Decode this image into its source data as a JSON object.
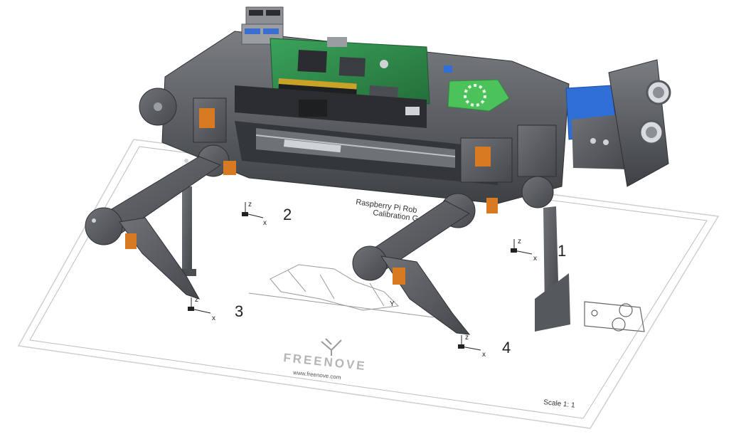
{
  "sheet": {
    "title_line1": "Raspberry Pi Rob",
    "title_line2": "Calibration G",
    "brand": "FREENOVE",
    "website": "www.freenove.com",
    "scale": "Scale 1: 1",
    "markers": [
      {
        "num": "1"
      },
      {
        "num": "2"
      },
      {
        "num": "3"
      },
      {
        "num": "4"
      }
    ],
    "axis_z": "z",
    "axis_x": "x",
    "axis_y": "Y"
  },
  "colors": {
    "body": "#5a5d61",
    "body_dark": "#3e4144",
    "pcb": "#2f8a4a",
    "servo_tab": "#e07b20",
    "head_blue": "#2f6fd6",
    "ring_board": "#4cc35a",
    "sheet_line": "#bdbdbd"
  }
}
